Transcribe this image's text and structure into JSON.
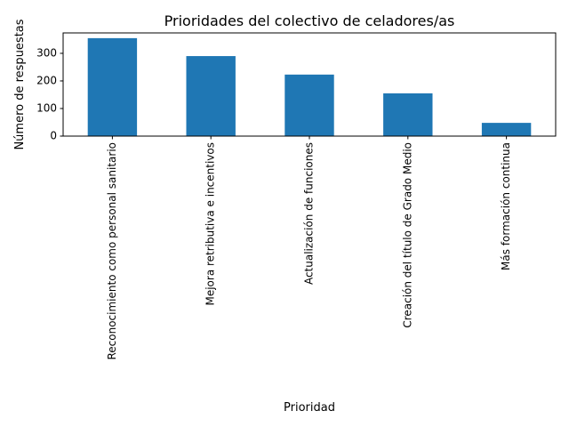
{
  "chart_data": {
    "type": "bar",
    "title": "Prioridades del colectivo de celadores/as",
    "x_label": "Prioridad",
    "y_label": "Número de respuestas",
    "categories": [
      "Reconocimiento como personal sanitario",
      "Mejora retributiva e incentivos",
      "Actualización de funciones",
      "Creación del título de Grado Medio",
      "Más formación continua"
    ],
    "values": [
      355,
      290,
      223,
      155,
      48
    ],
    "color": "#1f77b4",
    "ylim": [
      0,
      374
    ],
    "yticks": [
      0,
      100,
      200,
      300
    ],
    "grid": false
  }
}
